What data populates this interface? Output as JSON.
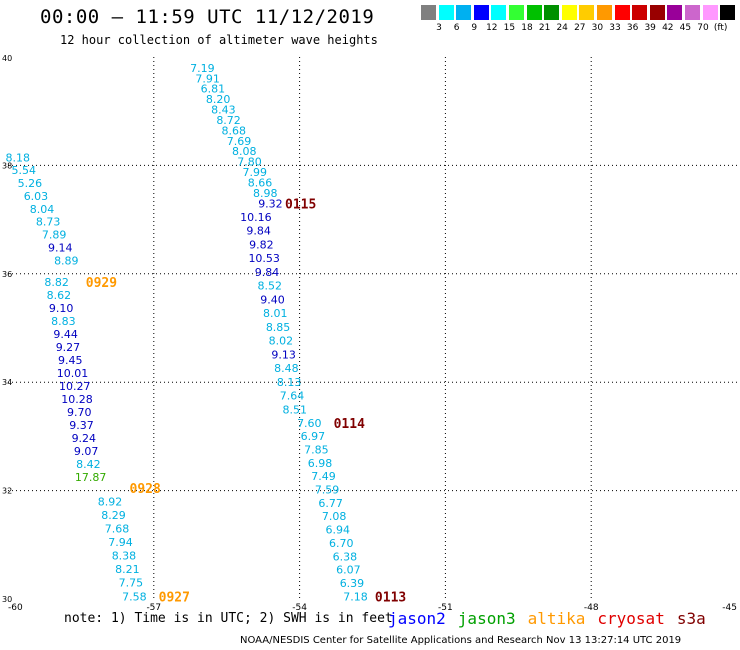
{
  "header": {
    "title": "00:00 – 11:59 UTC 11/12/2019",
    "subtitle": "12 hour collection of altimeter wave heights"
  },
  "footer": {
    "note": "note: 1) Time is in UTC; 2) SWH is in feet",
    "credit": "NOAA/NESDIS Center for Satellite Applications and Research   Nov 13 13:27:14 UTC 2019",
    "missions": [
      {
        "name": "jason2",
        "color": "#0000ff"
      },
      {
        "name": "jason3",
        "color": "#00a000"
      },
      {
        "name": "altika",
        "color": "#ff9900"
      },
      {
        "name": "cryosat",
        "color": "#e00000"
      },
      {
        "name": "s3a",
        "color": "#800000"
      }
    ]
  },
  "scale": {
    "unit": "(ft)",
    "colors": [
      "#808080",
      "#00ffff",
      "#00b0f0",
      "#0000ff",
      "#00ffff",
      "#33ff33",
      "#00c000",
      "#009000",
      "#ffff00",
      "#ffcc00",
      "#ff9900",
      "#ff0000",
      "#cc0000",
      "#990000",
      "#990099",
      "#cc66cc",
      "#ff99ff",
      "#000000"
    ],
    "labels": [
      "3",
      "6",
      "9",
      "12",
      "15",
      "18",
      "21",
      "24",
      "27",
      "30",
      "33",
      "36",
      "39",
      "42",
      "45",
      "70"
    ]
  },
  "chart_data": {
    "type": "scatter",
    "title": "00:00 – 11:59 UTC 11/12/2019",
    "subtitle": "12 hour collection of altimeter wave heights",
    "xlim": [
      -60,
      -45
    ],
    "ylim": [
      30,
      40
    ],
    "x_ticks": [
      "-60",
      "-57",
      "-54",
      "-51",
      "-48",
      "-45"
    ],
    "y_ticks": [
      "30",
      "32",
      "34",
      "36",
      "38",
      "40"
    ],
    "grid": true,
    "passes": [
      {
        "label": "0115",
        "color": "#800000",
        "x": -54.3,
        "y": 37.3
      },
      {
        "label": "0929",
        "color": "#ff9900",
        "x": -58.4,
        "y": 35.85
      },
      {
        "label": "0114",
        "color": "#800000",
        "x": -53.3,
        "y": 33.25
      },
      {
        "label": "0928",
        "color": "#ff9900",
        "x": -57.5,
        "y": 32.05
      },
      {
        "label": "0927",
        "color": "#ff9900",
        "x": -56.9,
        "y": 30.05
      },
      {
        "label": "0113",
        "color": "#800000",
        "x": -52.45,
        "y": 30.05
      }
    ],
    "tracks": [
      {
        "x_top": -56.0,
        "y_top": 39.8,
        "x_bot": -54.6,
        "y_bot": 37.3,
        "values": [
          "7.19",
          "7.91",
          "6.81",
          "8.20",
          "8.43",
          "8.72",
          "8.68",
          "7.69",
          "8.08",
          "7.80",
          "7.99",
          "8.66",
          "8.98",
          "9.32"
        ],
        "colors": [
          "c",
          "c",
          "c",
          "c",
          "c",
          "c",
          "c",
          "c",
          "c",
          "c",
          "c",
          "c",
          "c",
          "b"
        ]
      },
      {
        "x_top": -54.9,
        "y_top": 37.05,
        "x_bot": -54.1,
        "y_bot": 33.5,
        "values": [
          "10.16",
          "9.84",
          "9.82",
          "10.53",
          "9.84",
          "8.52",
          "9.40",
          "8.01",
          "8.85",
          "8.02",
          "9.13",
          "8.48",
          "8.13",
          "7.64",
          "8.51"
        ],
        "colors": [
          "b",
          "b",
          "b",
          "b",
          "b",
          "c",
          "b",
          "c",
          "c",
          "c",
          "b",
          "c",
          "c",
          "c",
          "c"
        ]
      },
      {
        "x_top": -53.8,
        "y_top": 33.25,
        "x_bot": -52.85,
        "y_bot": 30.05,
        "values": [
          "7.60",
          "6.97",
          "7.85",
          "6.98",
          "7.49",
          "7.59",
          "6.77",
          "7.08",
          "6.94",
          "6.70",
          "6.38",
          "6.07",
          "6.39",
          "7.18"
        ],
        "colors": [
          "c",
          "c",
          "c",
          "c",
          "c",
          "c",
          "c",
          "c",
          "c",
          "c",
          "c",
          "c",
          "c",
          "c"
        ]
      },
      {
        "x_top": -59.8,
        "y_top": 38.15,
        "x_bot": -58.8,
        "y_bot": 36.25,
        "values": [
          "8.18",
          "5.54",
          "5.26",
          "6.03",
          "8.04",
          "8.73",
          "7.89",
          "9.14",
          "8.89"
        ],
        "colors": [
          "c",
          "c",
          "c",
          "c",
          "c",
          "c",
          "c",
          "b",
          "c"
        ]
      },
      {
        "x_top": -59.0,
        "y_top": 35.85,
        "x_bot": -58.3,
        "y_bot": 32.25,
        "values": [
          "8.82",
          "8.62",
          "9.10",
          "8.83",
          "9.44",
          "9.27",
          "9.45",
          "10.01",
          "10.27",
          "10.28",
          "9.70",
          "9.37",
          "9.24",
          "9.07",
          "8.42",
          "17.87"
        ],
        "colors": [
          "c",
          "c",
          "b",
          "c",
          "b",
          "b",
          "b",
          "b",
          "b",
          "b",
          "b",
          "b",
          "b",
          "b",
          "c",
          "g"
        ]
      },
      {
        "x_top": -57.9,
        "y_top": 31.8,
        "x_bot": -57.4,
        "y_bot": 30.05,
        "values": [
          "8.92",
          "8.29",
          "7.68",
          "7.94",
          "8.38",
          "8.21",
          "7.75",
          "7.58"
        ],
        "colors": [
          "c",
          "c",
          "c",
          "c",
          "c",
          "c",
          "c",
          "c"
        ]
      }
    ]
  }
}
